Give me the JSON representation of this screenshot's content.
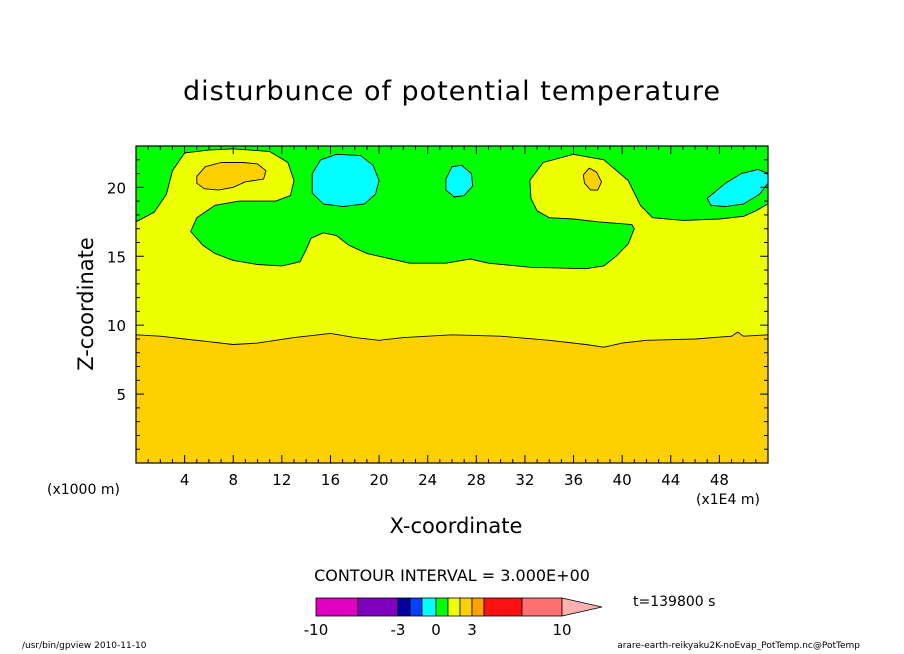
{
  "footer": {
    "left": "/usr/bin/gpview   2010-11-10",
    "right": "arare-earth-reikyaku2K-noEvap_PotTemp.nc@PotTemp"
  },
  "colors": {
    "magenta": "#e000c0",
    "purple": "#8000c0",
    "navy": "#0000a0",
    "blue": "#0040ff",
    "cyan": "#00ffff",
    "green": "#00ff00",
    "yellow": "#eeff00",
    "gold": "#ffd000",
    "orange": "#ffa000",
    "red": "#ff1010",
    "salmon": "#ff7070",
    "pink": "#ffb0b0"
  },
  "chart_data": {
    "type": "heatmap",
    "title": "disturbunce of potential temperature",
    "xlabel": "X-coordinate",
    "ylabel": "Z-coordinate",
    "x_unit_left": "(x1000 m)",
    "x_unit_right": "(x1E4 m)",
    "xlim": [
      0,
      52
    ],
    "ylim": [
      0,
      23
    ],
    "x_ticks": [
      4,
      8,
      12,
      16,
      20,
      24,
      28,
      32,
      36,
      40,
      44,
      48
    ],
    "y_ticks": [
      5,
      10,
      15,
      20
    ],
    "contour_interval_text": "CONTOUR INTERVAL = 3.000E+00",
    "time_label": "t=139800 s",
    "colorbar": {
      "labels": [
        "-10",
        "-3",
        "0",
        "3",
        "10"
      ],
      "label_values": [
        -10,
        -3,
        0,
        3,
        10
      ],
      "levels": [
        -10,
        -6,
        -3,
        -2,
        -1,
        0,
        1,
        2,
        3,
        4,
        6,
        10
      ],
      "colors": [
        "#e000c0",
        "#8000c0",
        "#0000a0",
        "#0040ff",
        "#00ffff",
        "#00ff00",
        "#eeff00",
        "#ffd000",
        "#ffa000",
        "#ff1010",
        "#ff7070",
        "#ffb0b0"
      ]
    },
    "regions": [
      {
        "name": "lower-warm-layer",
        "color": "#ffd000",
        "points": [
          [
            0,
            0
          ],
          [
            52,
            0
          ],
          [
            52,
            9.3
          ],
          [
            50,
            9.2
          ],
          [
            49.5,
            9.5
          ],
          [
            49,
            9.2
          ],
          [
            46,
            9.0
          ],
          [
            42,
            8.9
          ],
          [
            40,
            8.7
          ],
          [
            38.5,
            8.4
          ],
          [
            37,
            8.6
          ],
          [
            34,
            8.9
          ],
          [
            30,
            9.2
          ],
          [
            26,
            9.3
          ],
          [
            22,
            9.1
          ],
          [
            20,
            8.9
          ],
          [
            18,
            9.1
          ],
          [
            16,
            9.4
          ],
          [
            13,
            9.1
          ],
          [
            10,
            8.7
          ],
          [
            8,
            8.6
          ],
          [
            6,
            8.8
          ],
          [
            4,
            9.0
          ],
          [
            2,
            9.2
          ],
          [
            0,
            9.3
          ]
        ]
      },
      {
        "name": "upper-green-layer",
        "color": "#00ff00",
        "points": [
          [
            0,
            17.5
          ],
          [
            1.5,
            18.2
          ],
          [
            2.5,
            19.5
          ],
          [
            3,
            21.2
          ],
          [
            4,
            22.5
          ],
          [
            6,
            22.7
          ],
          [
            8,
            22.8
          ],
          [
            11,
            22.6
          ],
          [
            12.5,
            21.8
          ],
          [
            13,
            20.5
          ],
          [
            12.7,
            19.4
          ],
          [
            11.5,
            19.0
          ],
          [
            8.5,
            19.0
          ],
          [
            6.5,
            18.7
          ],
          [
            5,
            17.8
          ],
          [
            4.5,
            16.8
          ],
          [
            5.5,
            15.8
          ],
          [
            6.5,
            15.2
          ],
          [
            8,
            14.7
          ],
          [
            10,
            14.4
          ],
          [
            12,
            14.3
          ],
          [
            13.5,
            14.6
          ],
          [
            14,
            15.5
          ],
          [
            14.4,
            16.3
          ],
          [
            15.4,
            16.7
          ],
          [
            16.5,
            16.5
          ],
          [
            17.5,
            15.8
          ],
          [
            19,
            15.2
          ],
          [
            21,
            14.8
          ],
          [
            22.5,
            14.5
          ],
          [
            25.5,
            14.5
          ],
          [
            27.5,
            14.8
          ],
          [
            29,
            14.5
          ],
          [
            32.5,
            14.2
          ],
          [
            37,
            14.1
          ],
          [
            38.5,
            14.3
          ],
          [
            39.5,
            15.0
          ],
          [
            40.5,
            15.9
          ],
          [
            41,
            17.0
          ],
          [
            40.8,
            17.3
          ],
          [
            38,
            17.5
          ],
          [
            36,
            17.7
          ],
          [
            34,
            17.8
          ],
          [
            33,
            18.3
          ],
          [
            32.5,
            19.2
          ],
          [
            32.4,
            20.5
          ],
          [
            33.5,
            21.8
          ],
          [
            36,
            22.4
          ],
          [
            38.5,
            22.0
          ],
          [
            40.5,
            20.5
          ],
          [
            41.5,
            18.7
          ],
          [
            42.5,
            17.8
          ],
          [
            45,
            17.6
          ],
          [
            48,
            17.7
          ],
          [
            50,
            17.9
          ],
          [
            51,
            18.3
          ],
          [
            52,
            18.8
          ],
          [
            52,
            23
          ],
          [
            0,
            23
          ]
        ]
      },
      {
        "name": "warm-blob-left",
        "color": "#ffd000",
        "points": [
          [
            5,
            20.8
          ],
          [
            5.7,
            21.5
          ],
          [
            7,
            21.8
          ],
          [
            8.8,
            21.8
          ],
          [
            10,
            21.7
          ],
          [
            10.7,
            21.2
          ],
          [
            10.5,
            20.6
          ],
          [
            9,
            20.4
          ],
          [
            8,
            20.0
          ],
          [
            6.8,
            19.8
          ],
          [
            5.6,
            19.9
          ],
          [
            5,
            20.3
          ]
        ]
      },
      {
        "name": "warm-blob-right",
        "color": "#ffd000",
        "points": [
          [
            36.8,
            20.9
          ],
          [
            37.3,
            21.4
          ],
          [
            37.9,
            21.1
          ],
          [
            38.3,
            20.4
          ],
          [
            38,
            19.8
          ],
          [
            37.4,
            19.8
          ],
          [
            36.9,
            20.3
          ]
        ]
      },
      {
        "name": "cold-blob-1",
        "color": "#00ffff",
        "points": [
          [
            14.5,
            21.0
          ],
          [
            15.2,
            22.0
          ],
          [
            16.5,
            22.4
          ],
          [
            18.5,
            22.3
          ],
          [
            19.5,
            21.6
          ],
          [
            20,
            20.5
          ],
          [
            19.7,
            19.5
          ],
          [
            18.8,
            18.8
          ],
          [
            17,
            18.6
          ],
          [
            15.4,
            18.8
          ],
          [
            14.5,
            19.6
          ]
        ]
      },
      {
        "name": "cold-blob-2",
        "color": "#00ffff",
        "points": [
          [
            25.5,
            20.6
          ],
          [
            26,
            21.5
          ],
          [
            26.8,
            21.6
          ],
          [
            27.6,
            21.0
          ],
          [
            27.7,
            20.1
          ],
          [
            27,
            19.4
          ],
          [
            26.2,
            19.3
          ],
          [
            25.5,
            19.8
          ]
        ]
      },
      {
        "name": "cold-blob-3",
        "color": "#00ffff",
        "points": [
          [
            47,
            19.2
          ],
          [
            48.5,
            20.3
          ],
          [
            49.8,
            21.0
          ],
          [
            51.2,
            21.3
          ],
          [
            52,
            21.0
          ],
          [
            52,
            20.3
          ],
          [
            51.3,
            19.5
          ],
          [
            50,
            18.8
          ],
          [
            48.5,
            18.6
          ],
          [
            47.3,
            18.7
          ]
        ]
      }
    ]
  }
}
